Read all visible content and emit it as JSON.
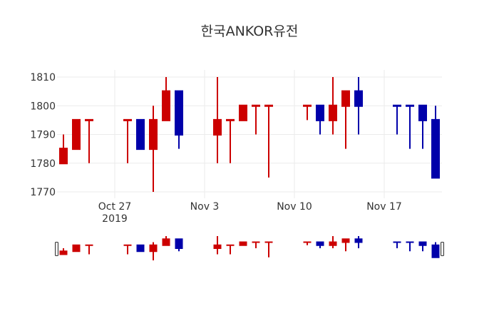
{
  "chart_data": {
    "type": "candlestick",
    "title": "한국ANKOR유전",
    "xlabel": "",
    "ylabel": "",
    "ylim": [
      1768,
      1812
    ],
    "y_ticks": [
      1770,
      1780,
      1790,
      1800,
      1810
    ],
    "x_ticks": [
      "Oct 27\n2019",
      "Nov 3",
      "Nov 10",
      "Nov 17"
    ],
    "grid": true,
    "rangeslider": true,
    "increasing_color": "#cc0000",
    "decreasing_color": "#0000aa",
    "x": [
      "2019-10-23",
      "2019-10-24",
      "2019-10-25",
      "2019-10-28",
      "2019-10-29",
      "2019-10-30",
      "2019-10-31",
      "2019-11-01",
      "2019-11-04",
      "2019-11-05",
      "2019-11-06",
      "2019-11-07",
      "2019-11-08",
      "2019-11-11",
      "2019-11-12",
      "2019-11-13",
      "2019-11-14",
      "2019-11-15",
      "2019-11-18",
      "2019-11-19",
      "2019-11-20",
      "2019-11-21"
    ],
    "open": [
      1780,
      1785,
      1795,
      1795,
      1795,
      1785,
      1795,
      1805,
      1790,
      1795,
      1795,
      1800,
      1800,
      1800,
      1800,
      1795,
      1800,
      1805,
      1800,
      1800,
      1800,
      1795
    ],
    "high": [
      1790,
      1795,
      1795,
      1795,
      1795,
      1800,
      1810,
      1805,
      1810,
      1795,
      1800,
      1800,
      1800,
      1800,
      1800,
      1810,
      1805,
      1810,
      1800,
      1800,
      1800,
      1800
    ],
    "low": [
      1780,
      1785,
      1780,
      1780,
      1785,
      1770,
      1795,
      1785,
      1780,
      1780,
      1795,
      1790,
      1775,
      1795,
      1790,
      1790,
      1785,
      1790,
      1790,
      1785,
      1785,
      1775
    ],
    "close": [
      1785,
      1795,
      1795,
      1795,
      1785,
      1795,
      1805,
      1790,
      1795,
      1795,
      1800,
      1800,
      1800,
      1800,
      1795,
      1800,
      1805,
      1800,
      1800,
      1800,
      1795,
      1775
    ],
    "direction": [
      "up",
      "up",
      "up",
      "up",
      "down",
      "up",
      "up",
      "down",
      "up",
      "up",
      "up",
      "up",
      "up",
      "up",
      "down",
      "up",
      "up",
      "down",
      "down",
      "down",
      "down",
      "down"
    ]
  },
  "title": "한국ANKOR유전",
  "axis": {
    "y_labels": [
      "1810",
      "1800",
      "1790",
      "1780",
      "1770"
    ],
    "x_labels": [
      "Oct 27",
      "Nov 3",
      "Nov 10",
      "Nov 17"
    ],
    "x_year": "2019"
  }
}
